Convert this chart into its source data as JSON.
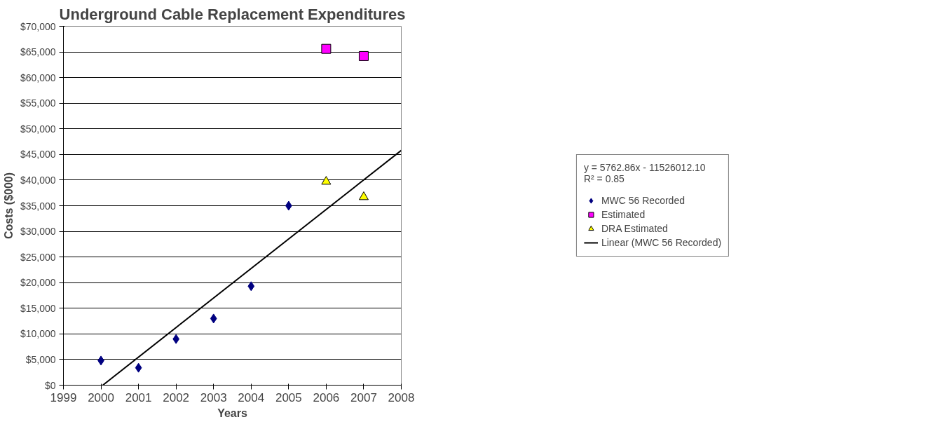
{
  "chart_data": {
    "type": "scatter",
    "title": "Underground Cable Replacement Expenditures",
    "xlabel": "Years",
    "ylabel": "Costs ($000)",
    "xlim": [
      1999,
      2008
    ],
    "xticks": [
      1999,
      2000,
      2001,
      2002,
      2003,
      2004,
      2005,
      2006,
      2007,
      2008
    ],
    "ylim": [
      0,
      70000
    ],
    "yticks": [
      {
        "value": 0,
        "label": "$0"
      },
      {
        "value": 5000,
        "label": "$5,000"
      },
      {
        "value": 10000,
        "label": "$10,000"
      },
      {
        "value": 15000,
        "label": "$15,000"
      },
      {
        "value": 20000,
        "label": "$20,000"
      },
      {
        "value": 25000,
        "label": "$25,000"
      },
      {
        "value": 30000,
        "label": "$30,000"
      },
      {
        "value": 35000,
        "label": "$35,000"
      },
      {
        "value": 40000,
        "label": "$40,000"
      },
      {
        "value": 45000,
        "label": "$45,000"
      },
      {
        "value": 50000,
        "label": "$50,000"
      },
      {
        "value": 55000,
        "label": "$55,000"
      },
      {
        "value": 60000,
        "label": "$60,000"
      },
      {
        "value": 65000,
        "label": "$65,000"
      },
      {
        "value": 70000,
        "label": "$70,000"
      }
    ],
    "grid": "y",
    "legend": "right",
    "series": [
      {
        "name": "MWC 56 Recorded",
        "marker": "diamond",
        "color": "#000080",
        "x": [
          2000,
          2001,
          2002,
          2003,
          2004,
          2005
        ],
        "values": [
          4800,
          3400,
          9000,
          13000,
          19300,
          35000
        ]
      },
      {
        "name": "Estimated",
        "marker": "square",
        "color": "#ff00ff",
        "x": [
          2006,
          2007
        ],
        "values": [
          65600,
          64200
        ]
      },
      {
        "name": "DRA Estimated",
        "marker": "triangle",
        "color": "#ffff00",
        "x": [
          2006,
          2007
        ],
        "values": [
          39700,
          36700
        ]
      },
      {
        "name": "Linear (MWC 56 Recorded)",
        "type": "line",
        "line_style": "solid",
        "color": "#000000",
        "x": [
          2000.05,
          2008
        ],
        "values": [
          0,
          45800
        ]
      }
    ],
    "annotations": [
      "y = 5762.86x - 11526012.10",
      "R² = 0.85"
    ]
  }
}
